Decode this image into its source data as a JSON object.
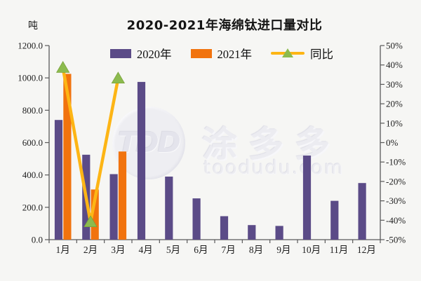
{
  "title": "2020-2021年海绵钛进口量对比",
  "legend": [
    {
      "label": "2020年",
      "type": "bar",
      "color": "#5b4b87"
    },
    {
      "label": "2021年",
      "type": "bar",
      "color": "#f1730e"
    },
    {
      "label": "同比",
      "type": "line",
      "line_color": "#fdb515",
      "marker_color": "#8cbb4e"
    }
  ],
  "watermark": {
    "badge": "TDD",
    "text": "涂多多",
    "subtext": "toodudu.com"
  },
  "colors": {
    "background": "#f6f6f4",
    "axis_line": "#5a5a5a",
    "axis_text": "#1f1f1f",
    "bar_2020": "#5b4b87",
    "bar_2021": "#f1730e",
    "yoy_line": "#fdb515",
    "yoy_marker": "#8cbb4e",
    "watermark_text": "#ececf1"
  },
  "chart_data": {
    "type": "bar",
    "title": "2020-2021年海绵钛进口量对比",
    "categories": [
      "1月",
      "2月",
      "3月",
      "4月",
      "5月",
      "6月",
      "7月",
      "8月",
      "9月",
      "10月",
      "11月",
      "12月"
    ],
    "series": [
      {
        "name": "2020年",
        "type": "bar",
        "axis": "left",
        "color": "#5b4b87",
        "values": [
          740,
          525,
          405,
          975,
          390,
          255,
          145,
          90,
          85,
          520,
          240,
          350
        ]
      },
      {
        "name": "2021年",
        "type": "bar",
        "axis": "left",
        "color": "#f1730e",
        "values": [
          1025,
          310,
          545,
          null,
          null,
          null,
          null,
          null,
          null,
          null,
          null,
          null
        ]
      },
      {
        "name": "同比",
        "type": "line",
        "axis": "right",
        "color": "#fdb515",
        "marker": "triangle-up",
        "marker_color": "#8cbb4e",
        "values": [
          38.5,
          -41,
          33,
          null,
          null,
          null,
          null,
          null,
          null,
          null,
          null,
          null
        ]
      }
    ],
    "left_axis": {
      "label": "吨",
      "min": 0,
      "max": 1200,
      "step": 200,
      "ticks": [
        "1200.0",
        "1000.0",
        "800.0",
        "600.0",
        "400.0",
        "200.0",
        "0.0"
      ]
    },
    "right_axis": {
      "min": -50,
      "max": 50,
      "step": 10,
      "suffix": "%",
      "ticks": [
        "50%",
        "40%",
        "30%",
        "20%",
        "10%",
        "0%",
        "-10%",
        "-20%",
        "-30%",
        "-40%",
        "-50%"
      ]
    },
    "grid": false,
    "legend_position": "top"
  }
}
